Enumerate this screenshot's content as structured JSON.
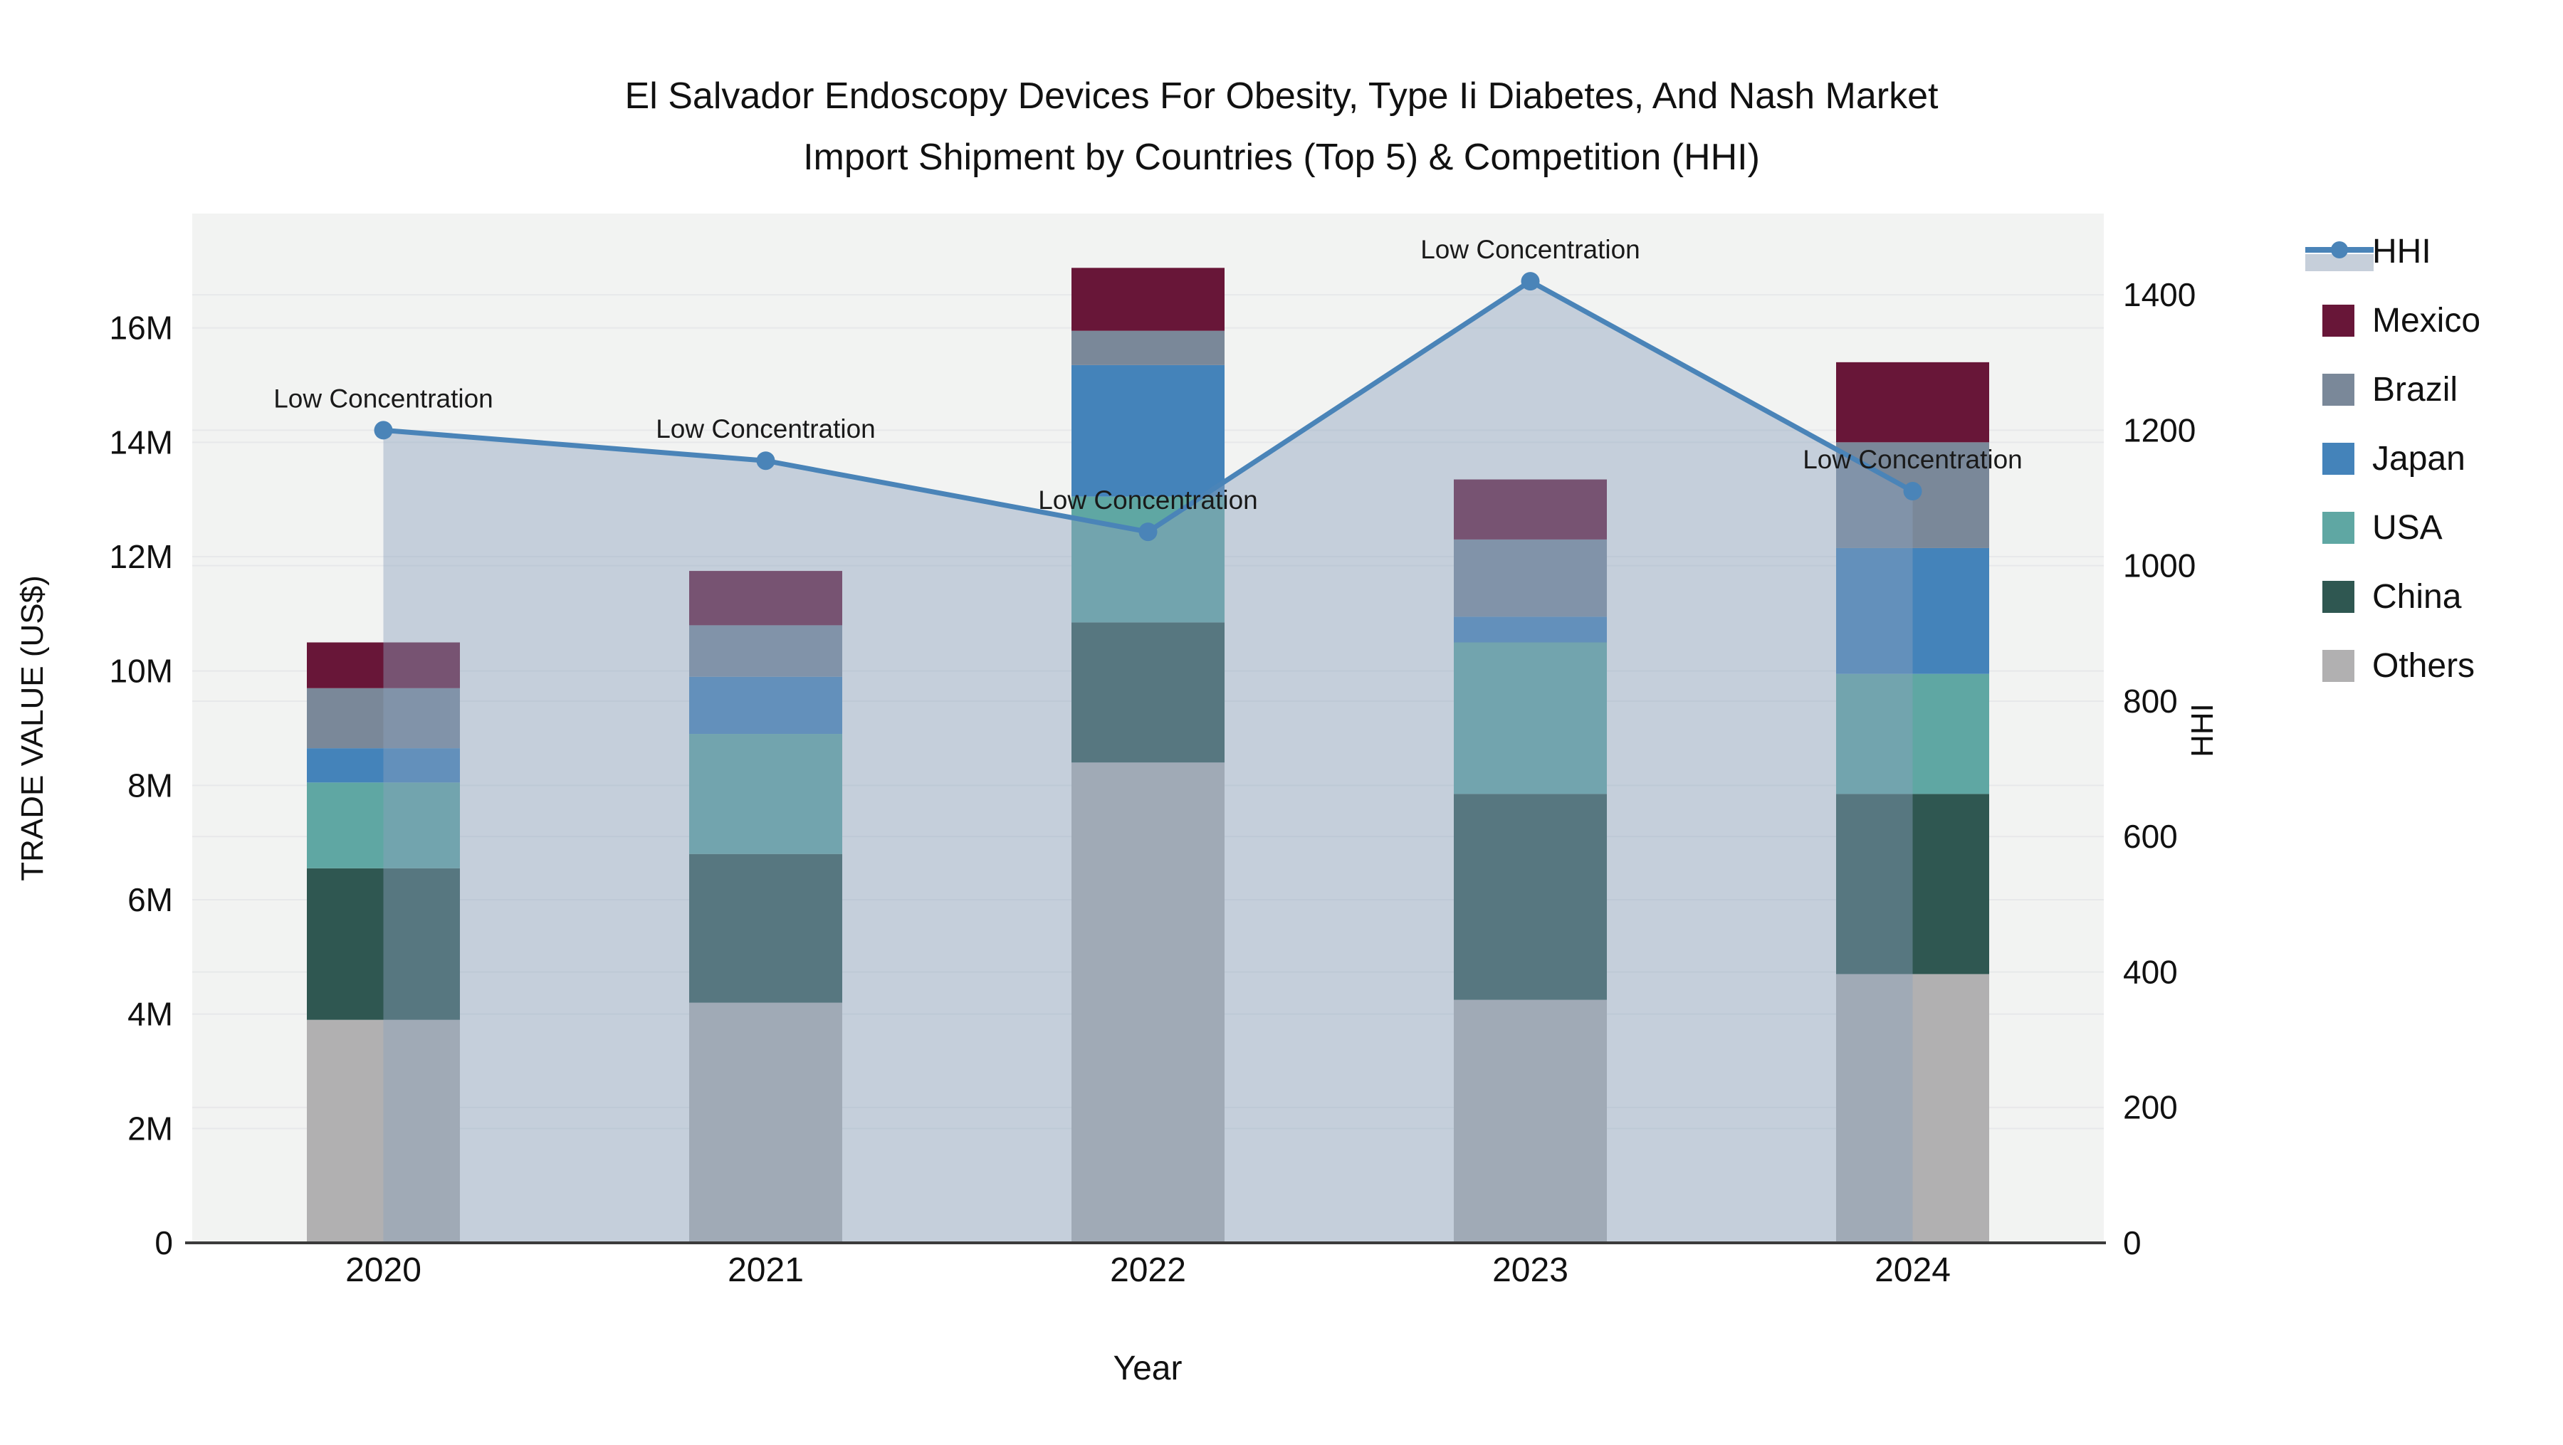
{
  "title": {
    "line1": "El Salvador Endoscopy Devices For Obesity, Type Ii Diabetes, And Nash Market",
    "line2": "Import Shipment by Countries (Top 5) & Competition (HHI)"
  },
  "axes": {
    "x": {
      "title": "Year",
      "tick_labels": [
        "2020",
        "2021",
        "2022",
        "2023",
        "2024"
      ]
    },
    "y_left": {
      "title": "TRADE VALUE (US$)",
      "tick_labels": [
        "0",
        "2M",
        "4M",
        "6M",
        "8M",
        "10M",
        "12M",
        "14M",
        "16M"
      ],
      "tick_values": [
        0,
        2000000,
        4000000,
        6000000,
        8000000,
        10000000,
        12000000,
        14000000,
        16000000
      ],
      "range": [
        0,
        18000000
      ]
    },
    "y_right": {
      "title": "HHI",
      "tick_labels": [
        "0",
        "200",
        "400",
        "600",
        "800",
        "1000",
        "1200",
        "1400"
      ],
      "tick_values": [
        0,
        200,
        400,
        600,
        800,
        1000,
        1200,
        1400
      ],
      "range": [
        0,
        1520
      ]
    }
  },
  "legend": {
    "items": [
      {
        "label": "HHI",
        "type": "line_area"
      },
      {
        "label": "Mexico",
        "type": "swatch"
      },
      {
        "label": "Brazil",
        "type": "swatch"
      },
      {
        "label": "Japan",
        "type": "swatch"
      },
      {
        "label": "USA",
        "type": "swatch"
      },
      {
        "label": "China",
        "type": "swatch"
      },
      {
        "label": "Others",
        "type": "swatch"
      }
    ]
  },
  "colors": {
    "hhi_line": "#4A84B8",
    "hhi_area": "#8CA1BC",
    "hhi_area_legend": "#C6CFDA",
    "plot_bg": "#F2F3F2",
    "gridline": "#E7E8EA",
    "baseline": "#3B3B3B",
    "text": "#111111",
    "Mexico": "#681638",
    "Brazil": "#7A8899",
    "Japan": "#4483BA",
    "USA": "#5FA7A3",
    "China": "#2F5751",
    "Others": "#B1B0B1"
  },
  "chart_data": {
    "type": "bar+line (stacked bars left axis, HHI line+area right axis)",
    "categories": [
      "2020",
      "2021",
      "2022",
      "2023",
      "2024"
    ],
    "stack_order": [
      "Others",
      "China",
      "USA",
      "Japan",
      "Brazil",
      "Mexico"
    ],
    "series": [
      {
        "name": "Mexico",
        "type": "bar",
        "axis": "left",
        "values": [
          800000,
          950000,
          1100000,
          1050000,
          1400000
        ]
      },
      {
        "name": "Brazil",
        "type": "bar",
        "axis": "left",
        "values": [
          1050000,
          900000,
          600000,
          1350000,
          1850000
        ]
      },
      {
        "name": "Japan",
        "type": "bar",
        "axis": "left",
        "values": [
          600000,
          1000000,
          2300000,
          450000,
          2200000
        ]
      },
      {
        "name": "USA",
        "type": "bar",
        "axis": "left",
        "values": [
          1500000,
          2100000,
          2200000,
          2650000,
          2100000
        ]
      },
      {
        "name": "China",
        "type": "bar",
        "axis": "left",
        "values": [
          2650000,
          2600000,
          2450000,
          3600000,
          3150000
        ]
      },
      {
        "name": "Others",
        "type": "bar",
        "axis": "left",
        "values": [
          3900000,
          4200000,
          8400000,
          4250000,
          4700000
        ]
      }
    ],
    "hhi": {
      "name": "HHI",
      "type": "line+area",
      "axis": "right",
      "values": [
        1200,
        1155,
        1050,
        1420,
        1110
      ],
      "point_labels": [
        "Low Concentration",
        "Low Concentration",
        "Low Concentration",
        "Low Concentration",
        "Low Concentration"
      ]
    },
    "xlabel": "Year",
    "ylabel_left": "TRADE VALUE (US$)",
    "ylabel_right": "HHI",
    "ylim_left": [
      0,
      18000000
    ],
    "ylim_right": [
      0,
      1520
    ],
    "grid": true,
    "legend_position": "right"
  }
}
